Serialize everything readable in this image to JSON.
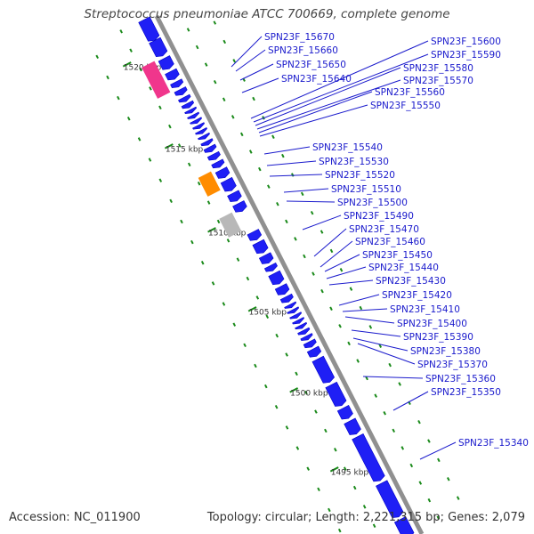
{
  "title": "Streptococcus pneumoniae ATCC 700669, complete genome",
  "footer": {
    "accession": "Accession: NC_011900",
    "summary": "Topology: circular; Length: 2,221,315 bp; Genes: 2,079"
  },
  "colors": {
    "cds": "#1f1ff5",
    "cds_dark": "#0000c8",
    "backbone": "#909090",
    "label": "#1a1acc",
    "tick_major": "#1a8a1a",
    "dot": "#1a8a1a",
    "rna_pink": "#f0368c",
    "rna_orange": "#ff8c00",
    "rna_gray": "#b8b8b8"
  },
  "ticks": [
    "1520 kbp",
    "1515 kbp",
    "1510 kbp",
    "1505 kbp",
    "1500 kbp",
    "1495 kbp"
  ],
  "gene_labels": [
    "SPN23F_15670",
    "SPN23F_15660",
    "SPN23F_15650",
    "SPN23F_15640",
    "SPN23F_15600",
    "SPN23F_15590",
    "SPN23F_15580",
    "SPN23F_15570",
    "SPN23F_15560",
    "SPN23F_15550",
    "SPN23F_15540",
    "SPN23F_15530",
    "SPN23F_15520",
    "SPN23F_15510",
    "SPN23F_15500",
    "SPN23F_15490",
    "SPN23F_15470",
    "SPN23F_15460",
    "SPN23F_15450",
    "SPN23F_15440",
    "SPN23F_15430",
    "SPN23F_15420",
    "SPN23F_15410",
    "SPN23F_15400",
    "SPN23F_15390",
    "SPN23F_15380",
    "SPN23F_15370",
    "SPN23F_15360",
    "SPN23F_15350",
    "SPN23F_15340"
  ]
}
